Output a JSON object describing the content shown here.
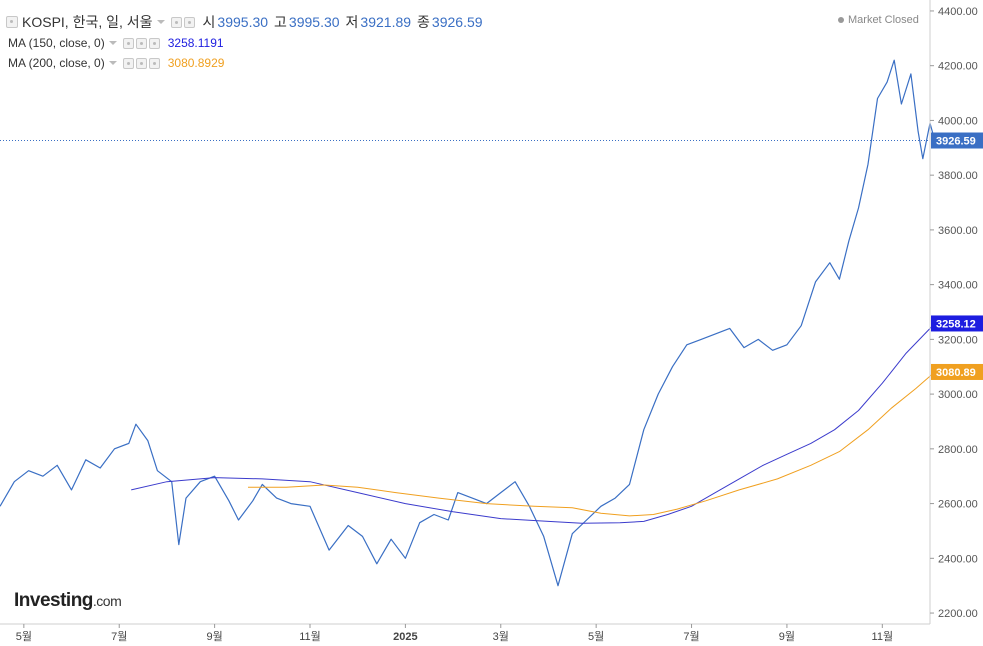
{
  "header": {
    "collapse_icon": "square-minus-icon",
    "symbol_line": "KOSPI, 한국, 일, 서울",
    "ohlc": [
      {
        "key": "시",
        "value": "3995.30"
      },
      {
        "key": "고",
        "value": "3995.30"
      },
      {
        "key": "저",
        "value": "3921.89"
      },
      {
        "key": "종",
        "value": "3926.59"
      }
    ],
    "market_status": "Market Closed"
  },
  "indicators": [
    {
      "label": "MA (150, close, 0)",
      "value": "3258.1191",
      "color": "#1d1de0"
    },
    {
      "label": "MA (200, close, 0)",
      "value": "3080.8929",
      "color": "#f0a020"
    }
  ],
  "logo": {
    "main": "Investing",
    "suffix": ".com"
  },
  "chart_data": {
    "type": "line",
    "x_ticks": [
      {
        "label": "5월",
        "t": 0.5
      },
      {
        "label": "7월",
        "t": 2.5
      },
      {
        "label": "9월",
        "t": 4.5
      },
      {
        "label": "11월",
        "t": 6.5
      },
      {
        "label": "2025",
        "t": 8.5
      },
      {
        "label": "3월",
        "t": 10.5
      },
      {
        "label": "5월",
        "t": 12.5
      },
      {
        "label": "7월",
        "t": 14.5
      },
      {
        "label": "9월",
        "t": 16.5
      },
      {
        "label": "11월",
        "t": 18.5
      }
    ],
    "x_range": [
      0,
      19.5
    ],
    "y_ticks": [
      "2200.00",
      "2400.00",
      "2600.00",
      "2800.00",
      "3000.00",
      "3200.00",
      "3400.00",
      "3600.00",
      "3800.00",
      "4000.00",
      "4200.00",
      "4400.00"
    ],
    "ylim": [
      2160,
      4440
    ],
    "last_value_labels": [
      {
        "text": "3926.59",
        "value": 3926.59,
        "color": "#3a6fc4"
      },
      {
        "text": "3258.12",
        "value": 3258.12,
        "color": "#1d1de0"
      },
      {
        "text": "3080.89",
        "value": 3080.89,
        "color": "#f0a020"
      }
    ],
    "series": [
      {
        "color": "#3a6fc4",
        "points": [
          [
            0,
            2590
          ],
          [
            0.3,
            2680
          ],
          [
            0.6,
            2720
          ],
          [
            0.9,
            2700
          ],
          [
            1.2,
            2740
          ],
          [
            1.5,
            2650
          ],
          [
            1.8,
            2760
          ],
          [
            2.1,
            2730
          ],
          [
            2.4,
            2800
          ],
          [
            2.7,
            2820
          ],
          [
            2.85,
            2890
          ],
          [
            3.1,
            2830
          ],
          [
            3.3,
            2720
          ],
          [
            3.6,
            2680
          ],
          [
            3.75,
            2450
          ],
          [
            3.9,
            2620
          ],
          [
            4.2,
            2680
          ],
          [
            4.5,
            2700
          ],
          [
            4.8,
            2610
          ],
          [
            5.0,
            2540
          ],
          [
            5.3,
            2610
          ],
          [
            5.5,
            2670
          ],
          [
            5.8,
            2620
          ],
          [
            6.1,
            2600
          ],
          [
            6.5,
            2590
          ],
          [
            6.9,
            2430
          ],
          [
            7.3,
            2520
          ],
          [
            7.6,
            2480
          ],
          [
            7.9,
            2380
          ],
          [
            8.2,
            2470
          ],
          [
            8.5,
            2400
          ],
          [
            8.8,
            2530
          ],
          [
            9.1,
            2560
          ],
          [
            9.4,
            2540
          ],
          [
            9.6,
            2640
          ],
          [
            9.9,
            2620
          ],
          [
            10.2,
            2600
          ],
          [
            10.5,
            2640
          ],
          [
            10.8,
            2680
          ],
          [
            11.1,
            2590
          ],
          [
            11.4,
            2480
          ],
          [
            11.7,
            2300
          ],
          [
            12.0,
            2490
          ],
          [
            12.3,
            2540
          ],
          [
            12.6,
            2590
          ],
          [
            12.9,
            2620
          ],
          [
            13.2,
            2670
          ],
          [
            13.5,
            2870
          ],
          [
            13.8,
            3000
          ],
          [
            14.1,
            3100
          ],
          [
            14.4,
            3180
          ],
          [
            14.7,
            3200
          ],
          [
            15.0,
            3220
          ],
          [
            15.3,
            3240
          ],
          [
            15.6,
            3170
          ],
          [
            15.9,
            3200
          ],
          [
            16.2,
            3160
          ],
          [
            16.5,
            3180
          ],
          [
            16.8,
            3250
          ],
          [
            17.1,
            3410
          ],
          [
            17.4,
            3480
          ],
          [
            17.6,
            3420
          ],
          [
            17.8,
            3560
          ],
          [
            18.0,
            3680
          ],
          [
            18.2,
            3840
          ],
          [
            18.4,
            4080
          ],
          [
            18.6,
            4140
          ],
          [
            18.75,
            4220
          ],
          [
            18.9,
            4060
          ],
          [
            19.1,
            4170
          ],
          [
            19.25,
            3960
          ],
          [
            19.35,
            3860
          ],
          [
            19.5,
            3990
          ],
          [
            19.6,
            3926.59
          ]
        ]
      },
      {
        "name": "MA (150, close, 0)",
        "color": "#3b3bcc",
        "points": [
          [
            2.75,
            2650
          ],
          [
            3.5,
            2680
          ],
          [
            4.5,
            2695
          ],
          [
            5.5,
            2690
          ],
          [
            6.5,
            2680
          ],
          [
            7.5,
            2640
          ],
          [
            8.5,
            2600
          ],
          [
            9.5,
            2570
          ],
          [
            10.5,
            2545
          ],
          [
            11.5,
            2535
          ],
          [
            12.2,
            2528
          ],
          [
            13.0,
            2530
          ],
          [
            13.5,
            2535
          ],
          [
            14.0,
            2560
          ],
          [
            14.5,
            2590
          ],
          [
            15.0,
            2640
          ],
          [
            15.5,
            2690
          ],
          [
            16.0,
            2740
          ],
          [
            16.5,
            2780
          ],
          [
            17.0,
            2820
          ],
          [
            17.5,
            2870
          ],
          [
            18.0,
            2940
          ],
          [
            18.5,
            3040
          ],
          [
            19.0,
            3150
          ],
          [
            19.6,
            3258.12
          ]
        ]
      },
      {
        "name": "MA (200, close, 0)",
        "color": "#f0a020",
        "points": [
          [
            5.2,
            2660
          ],
          [
            6.0,
            2660
          ],
          [
            6.8,
            2668
          ],
          [
            7.5,
            2660
          ],
          [
            8.3,
            2640
          ],
          [
            9.2,
            2620
          ],
          [
            10.2,
            2600
          ],
          [
            11.2,
            2590
          ],
          [
            12.0,
            2585
          ],
          [
            12.6,
            2565
          ],
          [
            13.2,
            2555
          ],
          [
            13.7,
            2560
          ],
          [
            14.2,
            2580
          ],
          [
            14.8,
            2610
          ],
          [
            15.5,
            2650
          ],
          [
            16.3,
            2690
          ],
          [
            17.0,
            2740
          ],
          [
            17.6,
            2790
          ],
          [
            18.2,
            2870
          ],
          [
            18.7,
            2950
          ],
          [
            19.2,
            3020
          ],
          [
            19.6,
            3080.89
          ]
        ]
      }
    ]
  }
}
